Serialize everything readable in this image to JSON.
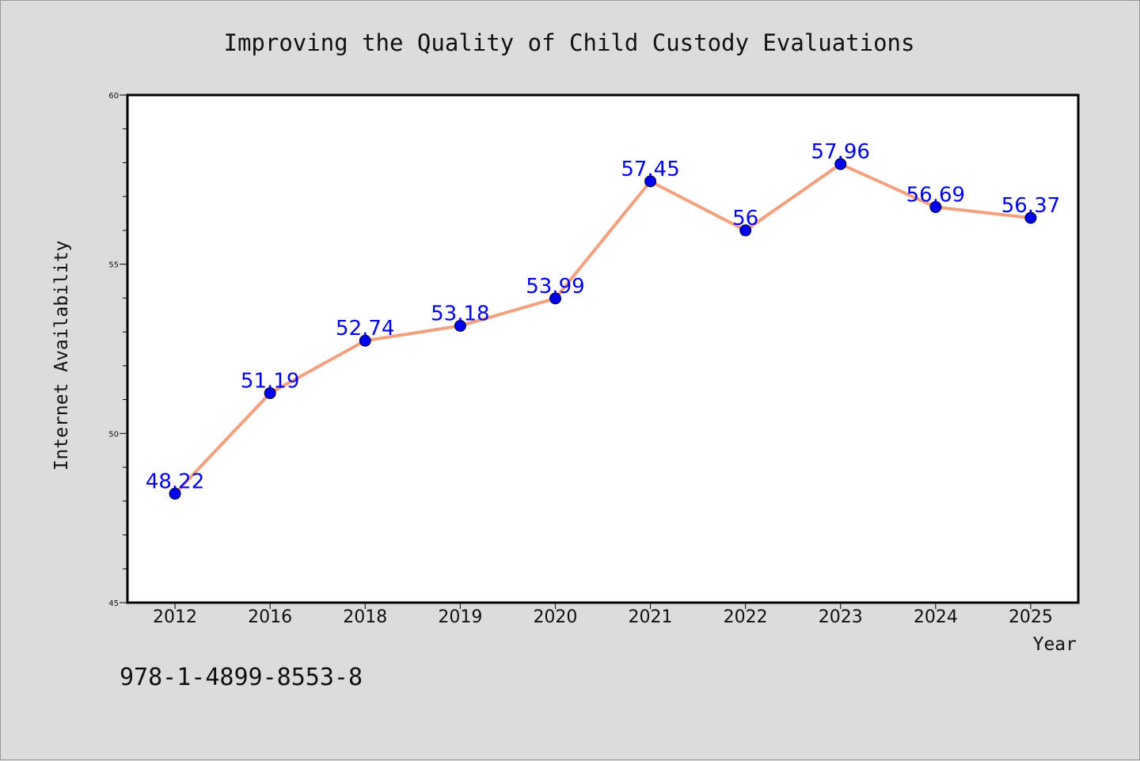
{
  "chart_data": {
    "type": "line",
    "title": "Improving the Quality of Child Custody Evaluations",
    "xlabel": "Year",
    "ylabel": "Internet Availability",
    "categories": [
      "2012",
      "2016",
      "2018",
      "2019",
      "2020",
      "2021",
      "2022",
      "2023",
      "2024",
      "2025"
    ],
    "series": [
      {
        "values": [
          48.22,
          51.19,
          52.74,
          53.18,
          53.99,
          57.45,
          56,
          57.96,
          56.69,
          56.37
        ],
        "data_labels": [
          "48.22",
          "51.19",
          "52.74",
          "53.18",
          "53.99",
          "57.45",
          "56",
          "57.96",
          "56.69",
          "56.37"
        ]
      }
    ],
    "ylim": [
      45,
      60
    ],
    "yticks": [
      "45",
      "50",
      "55",
      "60"
    ],
    "minor_ytick_step": 1,
    "grid": false,
    "legend": "none",
    "line_color": "#f4a07e",
    "marker_color": "#0000ee",
    "label_color": "#0000ee",
    "plot_background": "#ffffff",
    "figure_background": "#dcdcdc"
  },
  "footer": {
    "isbn": "978-1-4899-8553-8"
  }
}
